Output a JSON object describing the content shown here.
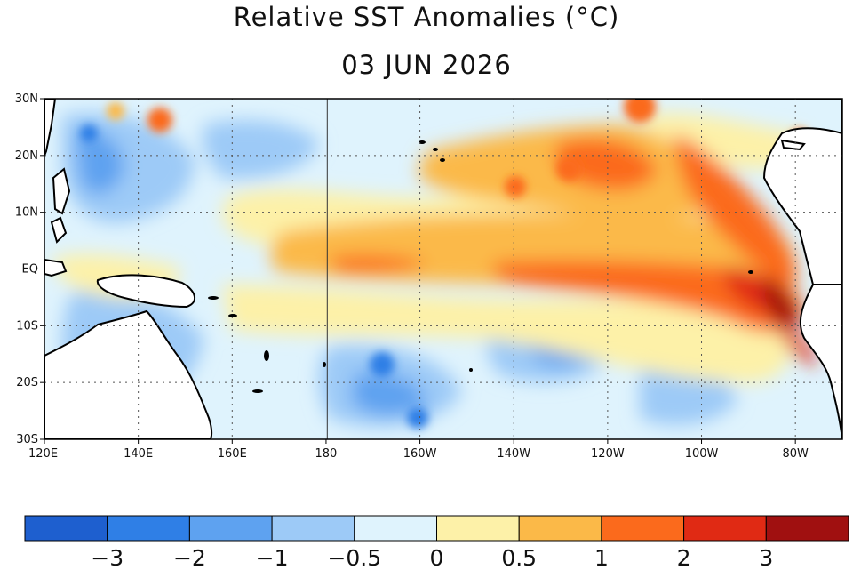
{
  "title": "Relative SST Anomalies (°C)",
  "date": "03 JUN 2026",
  "map": {
    "lat_range": [
      -30,
      30
    ],
    "lon_range_east": [
      120,
      290
    ],
    "lat_ticks": [
      {
        "value": 30,
        "label": "30N"
      },
      {
        "value": 20,
        "label": "20N"
      },
      {
        "value": 10,
        "label": "10N"
      },
      {
        "value": 0,
        "label": "EQ"
      },
      {
        "value": -10,
        "label": "10S"
      },
      {
        "value": -20,
        "label": "20S"
      },
      {
        "value": -30,
        "label": "30S"
      }
    ],
    "lon_ticks": [
      {
        "value": 120,
        "label": "120E"
      },
      {
        "value": 140,
        "label": "140E"
      },
      {
        "value": 160,
        "label": "160E"
      },
      {
        "value": 180,
        "label": "180"
      },
      {
        "value": 200,
        "label": "160W"
      },
      {
        "value": 220,
        "label": "140W"
      },
      {
        "value": 240,
        "label": "120W"
      },
      {
        "value": 260,
        "label": "100W"
      },
      {
        "value": 280,
        "label": "80W"
      }
    ],
    "land_color": "#ffffff",
    "grid_style": "dotted"
  },
  "colorbar": {
    "colors": [
      "#1e5fcf",
      "#2f7fe6",
      "#5ea2f0",
      "#9dcaf7",
      "#dff3fd",
      "#fdf1a8",
      "#fbb948",
      "#fb6a1c",
      "#e02a14",
      "#a01010"
    ],
    "labels": [
      "−3",
      "−2",
      "−1",
      "−0.5",
      "0",
      "0.5",
      "1",
      "2",
      "3"
    ]
  }
}
